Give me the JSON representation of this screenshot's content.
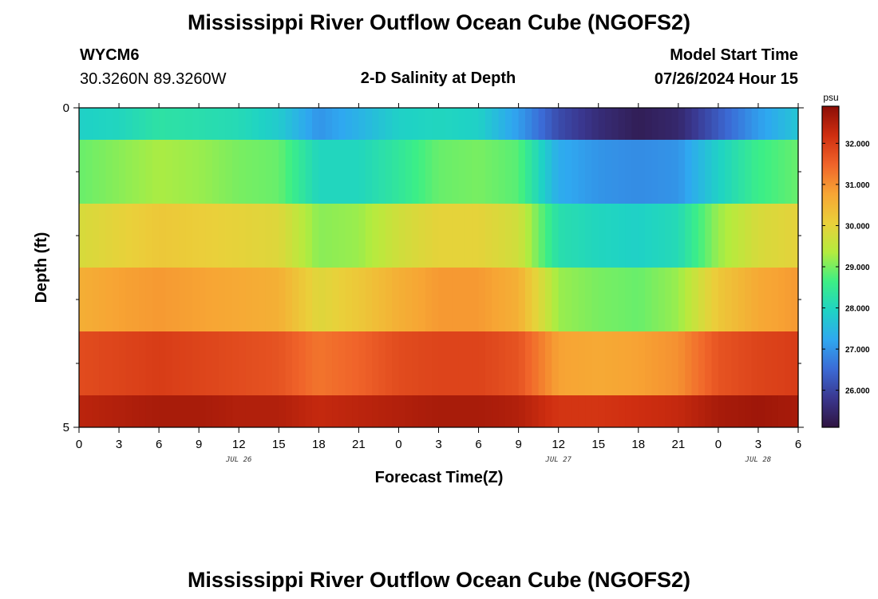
{
  "title": "Mississippi River Outflow Ocean Cube (NGOFS2)",
  "footer_title": "Mississippi River Outflow Ocean Cube (NGOFS2)",
  "station": {
    "id": "WYCM6",
    "coords": "30.3260N  89.3260W"
  },
  "subtitle": "2-D Salinity at Depth",
  "model_start": {
    "label": "Model Start Time",
    "value": "07/26/2024 Hour 15"
  },
  "chart_data": {
    "type": "heatmap",
    "xlabel": "Forecast Time(Z)",
    "ylabel": "Depth (ft)",
    "x_hours_range": [
      0,
      54
    ],
    "x_tick_labels": [
      "0",
      "3",
      "6",
      "9",
      "12",
      "15",
      "18",
      "21",
      "0",
      "3",
      "6",
      "9",
      "12",
      "15",
      "18",
      "21",
      "0",
      "3",
      "6"
    ],
    "date_labels": [
      {
        "text": "JUL 26",
        "hour": 12
      },
      {
        "text": "JUL 27",
        "hour": 36
      },
      {
        "text": "JUL 28",
        "hour": 51
      }
    ],
    "y_tick_labels": [
      "0",
      "5"
    ],
    "ylim": [
      0,
      5
    ],
    "depth_layers": [
      0.25,
      1.0,
      2.0,
      3.0,
      4.0,
      4.75
    ],
    "layer_bounds": [
      [
        0,
        0.5
      ],
      [
        0.5,
        1.5
      ],
      [
        1.5,
        2.5
      ],
      [
        2.5,
        3.5
      ],
      [
        3.5,
        4.5
      ],
      [
        4.5,
        5
      ]
    ],
    "time_hours": [
      0,
      3,
      6,
      9,
      12,
      15,
      18,
      21,
      24,
      27,
      30,
      33,
      36,
      39,
      42,
      45,
      48,
      51,
      54
    ],
    "salinity": [
      [
        27.9,
        28.0,
        28.3,
        28.2,
        28.1,
        27.8,
        27.0,
        27.4,
        27.9,
        28.0,
        27.9,
        27.1,
        26.1,
        25.6,
        25.3,
        25.5,
        26.3,
        27.1,
        27.7
      ],
      [
        28.9,
        29.1,
        29.3,
        29.2,
        29.0,
        28.9,
        28.0,
        28.0,
        28.4,
        28.9,
        29.0,
        28.8,
        27.3,
        27.0,
        26.9,
        27.0,
        27.9,
        28.6,
        28.9
      ],
      [
        29.8,
        30.0,
        30.2,
        30.1,
        30.0,
        29.9,
        29.1,
        29.2,
        29.7,
        30.0,
        30.0,
        29.7,
        28.2,
        28.0,
        27.9,
        28.1,
        29.2,
        29.8,
        30.0
      ],
      [
        30.6,
        30.8,
        30.9,
        30.8,
        30.7,
        30.6,
        29.9,
        30.2,
        30.6,
        30.9,
        30.9,
        30.6,
        29.2,
        29.0,
        28.9,
        29.2,
        30.2,
        30.7,
        30.9
      ],
      [
        31.8,
        31.9,
        32.0,
        31.9,
        31.8,
        31.7,
        31.3,
        31.5,
        31.8,
        31.9,
        31.9,
        31.7,
        30.8,
        30.7,
        30.8,
        31.0,
        31.7,
        31.9,
        32.0
      ],
      [
        32.4,
        32.5,
        32.6,
        32.6,
        32.5,
        32.5,
        32.3,
        32.4,
        32.5,
        32.6,
        32.6,
        32.5,
        32.1,
        32.1,
        32.2,
        32.3,
        32.6,
        32.7,
        32.6
      ]
    ],
    "colorbar": {
      "unit": "psu",
      "min": 25.1,
      "max": 32.9,
      "ticks": [
        "26.000",
        "27.000",
        "28.000",
        "29.000",
        "30.000",
        "31.000",
        "32.000"
      ],
      "colors": [
        "#2f1440",
        "#3a378f",
        "#3b6bd6",
        "#2fa8f0",
        "#1fd3c4",
        "#3def85",
        "#b4ec3e",
        "#ead03a",
        "#f7a534",
        "#f0642a",
        "#cf2e10",
        "#8b0e06"
      ]
    }
  }
}
